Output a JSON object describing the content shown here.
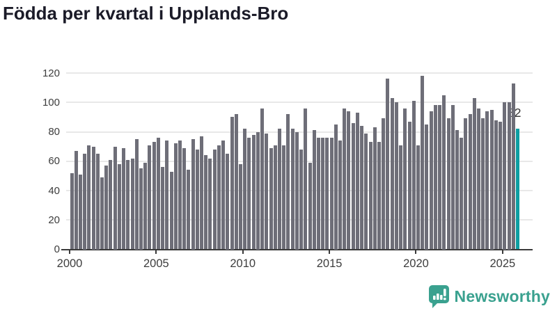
{
  "title": "Födda per kvartal i Upplands-Bro",
  "chart_data": {
    "type": "bar",
    "title": "Födda per kvartal i Upplands-Bro",
    "start_period": "2000-Q1",
    "end_period": "2025-Q4",
    "frequency": "quarterly",
    "values": [
      52,
      67,
      51,
      65,
      71,
      70,
      65,
      49,
      57,
      61,
      70,
      58,
      69,
      61,
      62,
      75,
      55,
      59,
      71,
      73,
      76,
      56,
      74,
      53,
      72,
      74,
      69,
      54,
      75,
      68,
      77,
      64,
      62,
      68,
      71,
      74,
      65,
      90,
      92,
      58,
      82,
      76,
      78,
      80,
      96,
      79,
      69,
      71,
      82,
      71,
      92,
      82,
      80,
      68,
      96,
      59,
      81,
      76,
      76,
      76,
      76,
      85,
      74,
      96,
      94,
      86,
      93,
      84,
      79,
      73,
      83,
      73,
      89,
      116,
      103,
      100,
      71,
      96,
      87,
      101,
      71,
      118,
      85,
      94,
      98,
      98,
      105,
      89,
      98,
      81,
      76,
      89,
      92,
      103,
      96,
      89,
      94,
      95,
      88,
      87,
      100,
      100,
      113,
      82
    ],
    "highlight": {
      "index": 103,
      "value": 82,
      "label": "82"
    },
    "bar_color": "#6E6E78",
    "highlight_color": "#0D9EA2",
    "ylim": [
      0,
      120
    ],
    "yticks": [
      "0",
      "20",
      "40",
      "60",
      "80",
      "100",
      "120"
    ],
    "xticks": [
      {
        "label": "2000",
        "quarter_index": 0
      },
      {
        "label": "2005",
        "quarter_index": 20
      },
      {
        "label": "2010",
        "quarter_index": 40
      },
      {
        "label": "2015",
        "quarter_index": 60
      },
      {
        "label": "2020",
        "quarter_index": 80
      },
      {
        "label": "2025",
        "quarter_index": 100
      }
    ],
    "grid": true,
    "legend_position": "none",
    "gridline_color": "#E8E8E8",
    "axis_color": "#3A3A3A"
  },
  "footer": {
    "brand": "Newsworthy",
    "brand_color": "#3AA18F",
    "logo_icon": "speech-bubble-bar-chart-icon"
  }
}
